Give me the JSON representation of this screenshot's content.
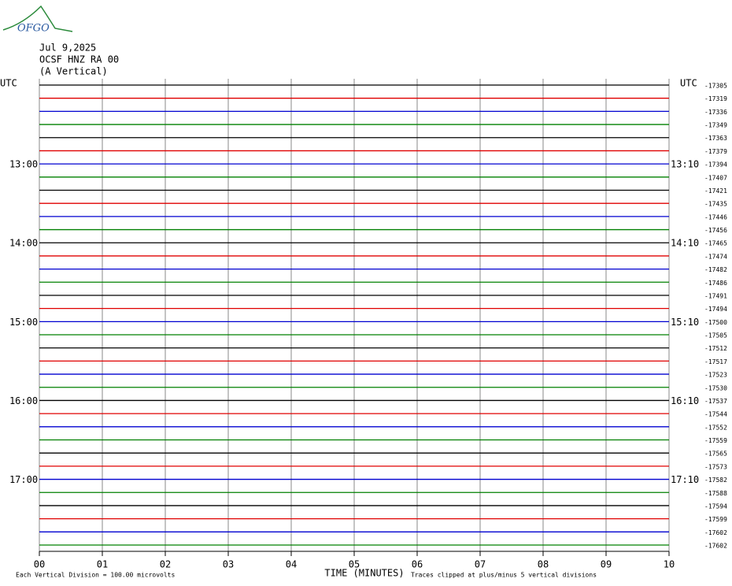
{
  "logo": "OFGO",
  "header": {
    "date": "Jul 9,2025",
    "station": "OCSF HNZ RA 00",
    "component": "(A Vertical)"
  },
  "chart_data": {
    "type": "helicorder",
    "left_axis_title": "UTC",
    "right_axis_title": "UTC",
    "xlabel": "TIME (MINUTES)",
    "xlim": [
      0,
      10
    ],
    "xticks": [
      {
        "value": 0,
        "label": "00"
      },
      {
        "value": 1,
        "label": "01"
      },
      {
        "value": 2,
        "label": "02"
      },
      {
        "value": 3,
        "label": "03"
      },
      {
        "value": 4,
        "label": "04"
      },
      {
        "value": 5,
        "label": "05"
      },
      {
        "value": 6,
        "label": "06"
      },
      {
        "value": 7,
        "label": "07"
      },
      {
        "value": 8,
        "label": "08"
      },
      {
        "value": 9,
        "label": "09"
      },
      {
        "value": 10,
        "label": "10"
      }
    ],
    "colors": [
      "#000000",
      "#e00000",
      "#0000d0",
      "#008000"
    ],
    "left_labels": [
      null,
      null,
      null,
      null,
      null,
      null,
      "13:00",
      null,
      null,
      null,
      null,
      null,
      "14:00",
      null,
      null,
      null,
      null,
      null,
      "15:00",
      null,
      null,
      null,
      null,
      null,
      "16:00",
      null,
      null,
      null,
      null,
      null,
      "17:00",
      null,
      null,
      null,
      null,
      null
    ],
    "right_labels": [
      null,
      null,
      null,
      null,
      null,
      null,
      "13:10",
      null,
      null,
      null,
      null,
      null,
      "14:10",
      null,
      null,
      null,
      null,
      null,
      "15:10",
      null,
      null,
      null,
      null,
      null,
      "16:10",
      null,
      null,
      null,
      null,
      null,
      "17:10",
      null,
      null,
      null,
      null,
      null
    ],
    "offsets": [
      "-17305",
      "-17319",
      "-17336",
      "-17349",
      "-17363",
      "-17379",
      "-17394",
      "-17407",
      "-17421",
      "-17435",
      "-17446",
      "-17456",
      "-17465",
      "-17474",
      "-17482",
      "-17486",
      "-17491",
      "-17494",
      "-17500",
      "-17505",
      "-17512",
      "-17517",
      "-17523",
      "-17530",
      "-17537",
      "-17544",
      "-17552",
      "-17559",
      "-17565",
      "-17573",
      "-17582",
      "-17588",
      "-17594",
      "-17599",
      "-17602",
      "-17602"
    ],
    "scale_note": "Each Vertical Division =  100.00 microvolts",
    "clip_note": "Traces clipped at plus/minus 5 vertical divisions"
  }
}
